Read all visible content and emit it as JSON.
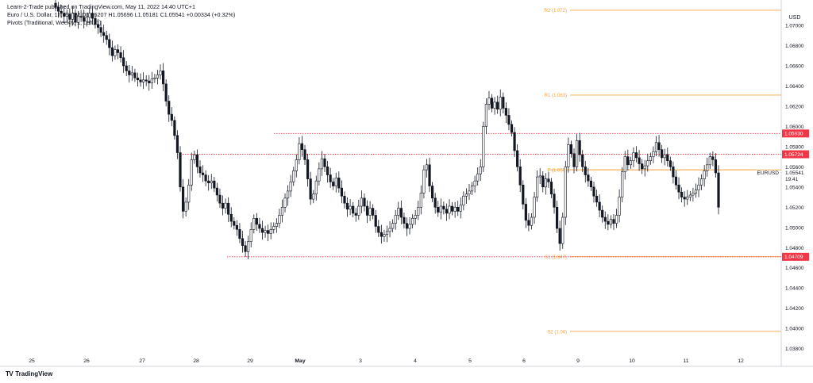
{
  "header": {
    "line1": "Learn-2-Trade published on TradingView.com, May 11, 2022 14:40 UTC+1",
    "line2": "Euro / U.S. Dollar, 1h, FXCM  O1.05207 H1.05696 L1.05181 C1.05541 +0.00334 (+0.32%)",
    "line3": "Pivots (Traditional, Weekly, 1, Left, 1)"
  },
  "footer": {
    "brand": "TradingView",
    "logo_icon": "tradingview-logo-icon"
  },
  "chart_data": {
    "type": "candlestick",
    "symbol": "EURUSD",
    "currency_label": "USD",
    "ylim": [
      1.0375,
      1.0722
    ],
    "y_ticks": [
      "1.07000",
      "1.06800",
      "1.06600",
      "1.06400",
      "1.06200",
      "1.06000",
      "1.05800",
      "1.05600",
      "1.05400",
      "1.05200",
      "1.05000",
      "1.04800",
      "1.04600",
      "1.04400",
      "1.04200",
      "1.04000",
      "1.03800"
    ],
    "x_ticks": [
      "25",
      "26",
      "27",
      "28",
      "29",
      "May",
      "3",
      "4",
      "5",
      "6",
      "9",
      "10",
      "11",
      "12"
    ],
    "pivots": [
      {
        "label": "R2 (1.072)",
        "value": 1.0715
      },
      {
        "label": "R1 (1.063)",
        "value": 1.0631
      },
      {
        "label": "P (1.056)",
        "value": 1.0557
      },
      {
        "label": "S1 (1.047)",
        "value": 1.0471
      },
      {
        "label": "S2 (1.04)",
        "value": 1.0397
      }
    ],
    "horizontal_levels": [
      {
        "label": "1.05930",
        "value": 1.0593
      },
      {
        "label": "1.05724",
        "value": 1.05724
      },
      {
        "label": "1.04709",
        "value": 1.04709
      }
    ],
    "last_price": {
      "value": "1.05541",
      "countdown": "19:41",
      "symbol": "EURUSD"
    },
    "candles_close": [
      1.0718,
      1.0714,
      1.0712,
      1.0709,
      1.0711,
      1.0706,
      1.0712,
      1.0703,
      1.0709,
      1.0708,
      1.0704,
      1.0708,
      1.0712,
      1.0707,
      1.0701,
      1.0698,
      1.0693,
      1.069,
      1.0686,
      1.0678,
      1.067,
      1.0676,
      1.0673,
      1.0668,
      1.066,
      1.0655,
      1.0651,
      1.0653,
      1.0648,
      1.0646,
      1.0644,
      1.0646,
      1.0645,
      1.0643,
      1.0647,
      1.0648,
      1.0651,
      1.0655,
      1.0642,
      1.0625,
      1.0612,
      1.0606,
      1.0591,
      1.0574,
      1.054,
      1.0516,
      1.0525,
      1.0542,
      1.0567,
      1.0572,
      1.056,
      1.0554,
      1.0552,
      1.0546,
      1.0544,
      1.0546,
      1.0539,
      1.0532,
      1.0524,
      1.0519,
      1.0524,
      1.0513,
      1.0506,
      1.0502,
      1.0498,
      1.0489,
      1.0482,
      1.0476,
      1.0486,
      1.0498,
      1.0509,
      1.0503,
      1.0499,
      1.0495,
      1.0497,
      1.0494,
      1.0498,
      1.0501,
      1.0504,
      1.0512,
      1.052,
      1.0529,
      1.0536,
      1.0545,
      1.0556,
      1.0567,
      1.0583,
      1.0577,
      1.0567,
      1.0548,
      1.0528,
      1.0533,
      1.0546,
      1.0558,
      1.0568,
      1.056,
      1.0552,
      1.0545,
      1.0541,
      1.0549,
      1.0539,
      1.0531,
      1.0524,
      1.0518,
      1.0521,
      1.0514,
      1.0512,
      1.0521,
      1.0529,
      1.0521,
      1.0512,
      1.0519,
      1.0512,
      1.0501,
      1.0495,
      1.0491,
      1.0493,
      1.0496,
      1.0499,
      1.0504,
      1.0512,
      1.0519,
      1.051,
      1.0504,
      1.0499,
      1.0503,
      1.0509,
      1.0512,
      1.052,
      1.0534,
      1.0557,
      1.0562,
      1.0541,
      1.0529,
      1.052,
      1.0515,
      1.0521,
      1.0518,
      1.0514,
      1.0521,
      1.0516,
      1.052,
      1.0516,
      1.0522,
      1.0531,
      1.0533,
      1.0536,
      1.0541,
      1.0546,
      1.0553,
      1.056,
      1.06,
      1.0622,
      1.0628,
      1.0618,
      1.0624,
      1.0617,
      1.0629,
      1.0618,
      1.0611,
      1.0602,
      1.0594,
      1.0576,
      1.056,
      1.0542,
      1.0523,
      1.0507,
      1.0502,
      1.051,
      1.053,
      1.055,
      1.0551,
      1.054,
      1.0548,
      1.0545,
      1.0533,
      1.052,
      1.0499,
      1.0484,
      1.051,
      1.056,
      1.0582,
      1.0573,
      1.056,
      1.0586,
      1.0572,
      1.056,
      1.0552,
      1.0546,
      1.054,
      1.0531,
      1.0525,
      1.0517,
      1.051,
      1.0506,
      1.0503,
      1.0508,
      1.0504,
      1.0512,
      1.053,
      1.0555,
      1.057,
      1.0562,
      1.0566,
      1.0574,
      1.0569,
      1.0563,
      1.0558,
      1.0561,
      1.0566,
      1.057,
      1.0575,
      1.0584,
      1.0577,
      1.0569,
      1.0572,
      1.0566,
      1.056,
      1.055,
      1.0542,
      1.0535,
      1.053,
      1.0528,
      1.053,
      1.0532,
      1.0534,
      1.0537,
      1.0542,
      1.0548,
      1.0556,
      1.0562,
      1.057,
      1.0567,
      1.0554,
      1.052
    ]
  }
}
